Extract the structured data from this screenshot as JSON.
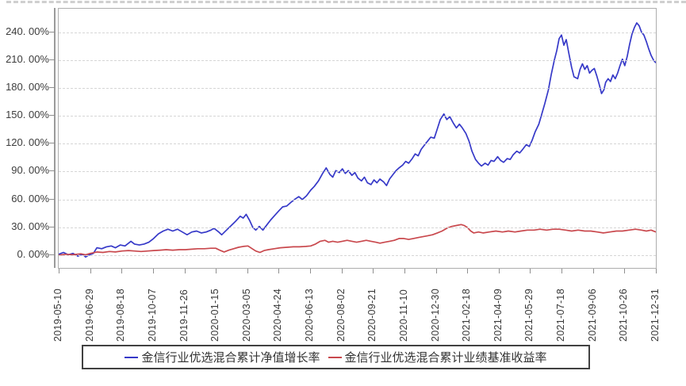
{
  "chart_data": {
    "type": "line",
    "title": "",
    "grid": "horizontal-dashed",
    "legend_position": "bottom",
    "y_tick_labels": [
      "240. 00%",
      "210. 00%",
      "180. 00%",
      "150. 00%",
      "120. 00%",
      "90. 00%",
      "60. 00%",
      "30. 00%",
      "0. 00%"
    ],
    "y_tick_values": [
      240,
      210,
      180,
      150,
      120,
      90,
      60,
      30,
      0
    ],
    "ylim": [
      -13.5,
      265.5
    ],
    "x_tick_labels": [
      "2019-05-10",
      "2019-06-29",
      "2019-08-18",
      "2019-10-07",
      "2019-11-26",
      "2020-01-15",
      "2020-03-05",
      "2020-04-24",
      "2020-06-13",
      "2020-08-02",
      "2020-09-21",
      "2020-11-10",
      "2020-12-30",
      "2021-02-18",
      "2021-04-09",
      "2021-05-29",
      "2021-07-18",
      "2021-09-06",
      "2021-10-26",
      "2021-12-31"
    ],
    "x_range_note": "points use normalized time t: 0 = 2019-05-10, 1 = 2021-12-31; values are cumulative return in %",
    "series": [
      {
        "name": "金信行业优选混合累计净值增长率",
        "color": "#3639c8",
        "points": [
          [
            0,
            1
          ],
          [
            0.008,
            3
          ],
          [
            0.016,
            0.5
          ],
          [
            0.024,
            2
          ],
          [
            0.032,
            -1
          ],
          [
            0.04,
            1
          ],
          [
            0.045,
            -2
          ],
          [
            0.05,
            0
          ],
          [
            0.058,
            2
          ],
          [
            0.064,
            8
          ],
          [
            0.072,
            7
          ],
          [
            0.08,
            9
          ],
          [
            0.088,
            10
          ],
          [
            0.095,
            8
          ],
          [
            0.103,
            11
          ],
          [
            0.111,
            10
          ],
          [
            0.121,
            15
          ],
          [
            0.127,
            12
          ],
          [
            0.135,
            11
          ],
          [
            0.143,
            12
          ],
          [
            0.151,
            14
          ],
          [
            0.159,
            18
          ],
          [
            0.167,
            23
          ],
          [
            0.175,
            26
          ],
          [
            0.183,
            28
          ],
          [
            0.191,
            26
          ],
          [
            0.199,
            28
          ],
          [
            0.207,
            25
          ],
          [
            0.215,
            22
          ],
          [
            0.223,
            25
          ],
          [
            0.231,
            26
          ],
          [
            0.239,
            24
          ],
          [
            0.247,
            25
          ],
          [
            0.255,
            27
          ],
          [
            0.26,
            29
          ],
          [
            0.268,
            25
          ],
          [
            0.273,
            22
          ],
          [
            0.281,
            27
          ],
          [
            0.289,
            32
          ],
          [
            0.297,
            37
          ],
          [
            0.304,
            42
          ],
          [
            0.309,
            40
          ],
          [
            0.314,
            44
          ],
          [
            0.32,
            37
          ],
          [
            0.325,
            30
          ],
          [
            0.33,
            27
          ],
          [
            0.336,
            31
          ],
          [
            0.342,
            27
          ],
          [
            0.349,
            33
          ],
          [
            0.355,
            38
          ],
          [
            0.362,
            43
          ],
          [
            0.369,
            48
          ],
          [
            0.375,
            52
          ],
          [
            0.382,
            53
          ],
          [
            0.389,
            57
          ],
          [
            0.395,
            60
          ],
          [
            0.402,
            63
          ],
          [
            0.408,
            60
          ],
          [
            0.415,
            64
          ],
          [
            0.422,
            70
          ],
          [
            0.428,
            74
          ],
          [
            0.435,
            80
          ],
          [
            0.442,
            88
          ],
          [
            0.448,
            94
          ],
          [
            0.454,
            87
          ],
          [
            0.459,
            84
          ],
          [
            0.464,
            91
          ],
          [
            0.47,
            89
          ],
          [
            0.475,
            93
          ],
          [
            0.48,
            88
          ],
          [
            0.485,
            91
          ],
          [
            0.491,
            86
          ],
          [
            0.496,
            89
          ],
          [
            0.501,
            83
          ],
          [
            0.507,
            80
          ],
          [
            0.512,
            84
          ],
          [
            0.517,
            78
          ],
          [
            0.523,
            76
          ],
          [
            0.528,
            81
          ],
          [
            0.533,
            78
          ],
          [
            0.538,
            82
          ],
          [
            0.544,
            79
          ],
          [
            0.549,
            75
          ],
          [
            0.554,
            82
          ],
          [
            0.56,
            87
          ],
          [
            0.565,
            91
          ],
          [
            0.57,
            94
          ],
          [
            0.576,
            97
          ],
          [
            0.581,
            101
          ],
          [
            0.586,
            99
          ],
          [
            0.592,
            104
          ],
          [
            0.597,
            109
          ],
          [
            0.602,
            107
          ],
          [
            0.607,
            114
          ],
          [
            0.613,
            119
          ],
          [
            0.618,
            123
          ],
          [
            0.623,
            127
          ],
          [
            0.629,
            126
          ],
          [
            0.634,
            136
          ],
          [
            0.639,
            146
          ],
          [
            0.645,
            152
          ],
          [
            0.65,
            146
          ],
          [
            0.655,
            149
          ],
          [
            0.661,
            142
          ],
          [
            0.666,
            137
          ],
          [
            0.671,
            141
          ],
          [
            0.676,
            137
          ],
          [
            0.682,
            131
          ],
          [
            0.687,
            123
          ],
          [
            0.692,
            112
          ],
          [
            0.698,
            103
          ],
          [
            0.703,
            99
          ],
          [
            0.708,
            96
          ],
          [
            0.714,
            99
          ],
          [
            0.719,
            97
          ],
          [
            0.724,
            102
          ],
          [
            0.729,
            101
          ],
          [
            0.735,
            106
          ],
          [
            0.74,
            102
          ],
          [
            0.745,
            100
          ],
          [
            0.751,
            104
          ],
          [
            0.756,
            103
          ],
          [
            0.761,
            108
          ],
          [
            0.767,
            112
          ],
          [
            0.772,
            110
          ],
          [
            0.777,
            114
          ],
          [
            0.783,
            119
          ],
          [
            0.788,
            117
          ],
          [
            0.793,
            124
          ],
          [
            0.798,
            133
          ],
          [
            0.804,
            141
          ],
          [
            0.809,
            152
          ],
          [
            0.814,
            163
          ],
          [
            0.82,
            178
          ],
          [
            0.825,
            195
          ],
          [
            0.83,
            210
          ],
          [
            0.834,
            220
          ],
          [
            0.838,
            233
          ],
          [
            0.842,
            237
          ],
          [
            0.846,
            226
          ],
          [
            0.85,
            232
          ],
          [
            0.854,
            218
          ],
          [
            0.859,
            202
          ],
          [
            0.863,
            192
          ],
          [
            0.869,
            190
          ],
          [
            0.873,
            200
          ],
          [
            0.877,
            206
          ],
          [
            0.881,
            200
          ],
          [
            0.885,
            204
          ],
          [
            0.889,
            196
          ],
          [
            0.893,
            199
          ],
          [
            0.897,
            201
          ],
          [
            0.901,
            193
          ],
          [
            0.905,
            184
          ],
          [
            0.909,
            174
          ],
          [
            0.913,
            178
          ],
          [
            0.916,
            186
          ],
          [
            0.92,
            190
          ],
          [
            0.924,
            187
          ],
          [
            0.928,
            194
          ],
          [
            0.932,
            190
          ],
          [
            0.936,
            196
          ],
          [
            0.94,
            204
          ],
          [
            0.944,
            211
          ],
          [
            0.948,
            204
          ],
          [
            0.952,
            214
          ],
          [
            0.956,
            227
          ],
          [
            0.96,
            238
          ],
          [
            0.964,
            245
          ],
          [
            0.968,
            250
          ],
          [
            0.972,
            247
          ],
          [
            0.976,
            240
          ],
          [
            0.98,
            237
          ],
          [
            0.984,
            230
          ],
          [
            0.988,
            222
          ],
          [
            0.992,
            215
          ],
          [
            0.996,
            210
          ],
          [
            1,
            207
          ]
        ]
      },
      {
        "name": "金信行业优选混合累计业绩基准收益率",
        "color": "#c9484d",
        "points": [
          [
            0,
            0
          ],
          [
            0.011,
            1
          ],
          [
            0.024,
            0.5
          ],
          [
            0.037,
            1.5
          ],
          [
            0.045,
            0.5
          ],
          [
            0.053,
            2
          ],
          [
            0.064,
            3.5
          ],
          [
            0.074,
            3
          ],
          [
            0.085,
            4
          ],
          [
            0.095,
            3.5
          ],
          [
            0.106,
            4.5
          ],
          [
            0.117,
            5
          ],
          [
            0.127,
            4.5
          ],
          [
            0.138,
            4
          ],
          [
            0.149,
            4.5
          ],
          [
            0.159,
            5
          ],
          [
            0.17,
            5.5
          ],
          [
            0.18,
            6
          ],
          [
            0.191,
            5.5
          ],
          [
            0.202,
            6
          ],
          [
            0.212,
            6
          ],
          [
            0.223,
            6.5
          ],
          [
            0.233,
            7
          ],
          [
            0.244,
            7
          ],
          [
            0.255,
            7.5
          ],
          [
            0.263,
            7.5
          ],
          [
            0.271,
            5
          ],
          [
            0.277,
            3.5
          ],
          [
            0.285,
            5.5
          ],
          [
            0.293,
            7
          ],
          [
            0.301,
            8.5
          ],
          [
            0.309,
            9.5
          ],
          [
            0.317,
            10
          ],
          [
            0.324,
            7
          ],
          [
            0.33,
            4.5
          ],
          [
            0.337,
            3
          ],
          [
            0.344,
            5
          ],
          [
            0.351,
            6
          ],
          [
            0.361,
            7
          ],
          [
            0.371,
            8
          ],
          [
            0.382,
            8.5
          ],
          [
            0.393,
            9
          ],
          [
            0.403,
            9
          ],
          [
            0.414,
            9.5
          ],
          [
            0.422,
            10
          ],
          [
            0.43,
            12
          ],
          [
            0.438,
            15
          ],
          [
            0.446,
            16
          ],
          [
            0.452,
            14
          ],
          [
            0.459,
            15
          ],
          [
            0.467,
            14
          ],
          [
            0.475,
            15
          ],
          [
            0.483,
            16
          ],
          [
            0.491,
            15
          ],
          [
            0.499,
            14
          ],
          [
            0.507,
            15
          ],
          [
            0.515,
            16
          ],
          [
            0.523,
            15
          ],
          [
            0.531,
            14
          ],
          [
            0.538,
            13
          ],
          [
            0.546,
            14
          ],
          [
            0.554,
            15
          ],
          [
            0.562,
            16
          ],
          [
            0.57,
            18
          ],
          [
            0.578,
            18
          ],
          [
            0.586,
            17
          ],
          [
            0.594,
            18
          ],
          [
            0.602,
            19
          ],
          [
            0.61,
            20
          ],
          [
            0.618,
            21
          ],
          [
            0.626,
            22
          ],
          [
            0.634,
            24
          ],
          [
            0.642,
            26
          ],
          [
            0.65,
            29
          ],
          [
            0.658,
            31
          ],
          [
            0.666,
            32
          ],
          [
            0.674,
            33
          ],
          [
            0.679,
            32
          ],
          [
            0.684,
            30
          ],
          [
            0.69,
            26
          ],
          [
            0.695,
            24
          ],
          [
            0.703,
            25
          ],
          [
            0.711,
            24
          ],
          [
            0.721,
            25
          ],
          [
            0.732,
            26
          ],
          [
            0.743,
            25
          ],
          [
            0.753,
            26
          ],
          [
            0.764,
            25
          ],
          [
            0.774,
            26
          ],
          [
            0.785,
            27
          ],
          [
            0.796,
            27
          ],
          [
            0.806,
            28
          ],
          [
            0.817,
            27
          ],
          [
            0.828,
            28
          ],
          [
            0.838,
            28
          ],
          [
            0.849,
            27
          ],
          [
            0.859,
            26
          ],
          [
            0.87,
            27
          ],
          [
            0.881,
            26
          ],
          [
            0.891,
            26
          ],
          [
            0.902,
            25
          ],
          [
            0.912,
            24
          ],
          [
            0.923,
            25
          ],
          [
            0.934,
            26
          ],
          [
            0.944,
            26
          ],
          [
            0.955,
            27
          ],
          [
            0.966,
            28
          ],
          [
            0.976,
            27
          ],
          [
            0.984,
            26
          ],
          [
            0.992,
            27
          ],
          [
            1,
            25
          ]
        ]
      }
    ]
  },
  "legend": {
    "items": [
      {
        "label": "金信行业优选混合累计净值增长率",
        "color": "#3639c8"
      },
      {
        "label": "金信行业优选混合累计业绩基准收益率",
        "color": "#c9484d"
      }
    ]
  }
}
